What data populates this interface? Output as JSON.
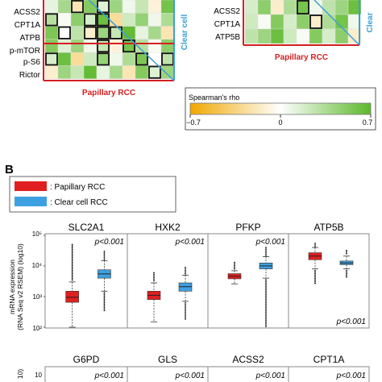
{
  "heatmap_left": {
    "row_labels": [
      "ACSS2",
      "CPT1A",
      "ATPB",
      "p-mTOR",
      "p-S6",
      "Rictor"
    ],
    "x_label": "Papillary RCC",
    "side_label": "Clear cell"
  },
  "heatmap_right": {
    "row_labels": [
      "ACSS2",
      "CPT1A",
      "ATP5B"
    ],
    "x_label": "Papillary RCC",
    "side_label": "Clear"
  },
  "colorbar": {
    "title": "Spearman's rho",
    "ticks": [
      "−0.7",
      "0",
      "0.7"
    ],
    "colors": {
      "low": "#f0a800",
      "mid": "#ffffff",
      "high": "#5cb82a"
    }
  },
  "panel_b": {
    "label": "B",
    "legend": [
      {
        "label": ": Papillary RCC",
        "color": "#e02020"
      },
      {
        "label": ": Clear cell RCC",
        "color": "#3ea0e0"
      }
    ],
    "y_axis_label_line1": "mRNA expression",
    "y_axis_label_line2": "(RNA Seq v2 RSEM) (log10)",
    "y_ticks": [
      "10²",
      "10³",
      "10⁴",
      "10⁵"
    ],
    "bottom_row_y_tick": "10",
    "bottom_row_y_axis_label": "10)"
  },
  "chart_data": {
    "type": "box",
    "ylabel": "mRNA expression (RNA Seq v2 RSEM) (log10)",
    "y_scale": "log",
    "ylim": [
      100,
      100000
    ],
    "series": [
      {
        "name": "Papillary RCC",
        "color": "#e02020"
      },
      {
        "name": "Clear cell RCC",
        "color": "#3ea0e0"
      }
    ],
    "panels": [
      {
        "gene": "SLC2A1",
        "p_value": "p<0.001",
        "boxes": [
          {
            "series": "Papillary RCC",
            "q1": 650,
            "median": 950,
            "q3": 1500,
            "whisker_low": 100,
            "whisker_high": 3000,
            "outlier_high": 50000
          },
          {
            "series": "Clear cell RCC",
            "q1": 4000,
            "median": 5500,
            "q3": 7500,
            "whisker_low": 1500,
            "whisker_high": 15000,
            "outlier_low": 350,
            "outlier_high": 30000
          }
        ]
      },
      {
        "gene": "HXK2",
        "p_value": "p<0.001",
        "boxes": [
          {
            "series": "Papillary RCC",
            "q1": 800,
            "median": 1100,
            "q3": 1500,
            "whisker_low": 150,
            "whisker_high": 2800,
            "outlier_high": 6000
          },
          {
            "series": "Clear cell RCC",
            "q1": 1500,
            "median": 2100,
            "q3": 2800,
            "whisker_low": 700,
            "whisker_high": 5000,
            "outlier_low": 180,
            "outlier_high": 9000
          }
        ]
      },
      {
        "gene": "PFKP",
        "p_value": "p<0.001",
        "boxes": [
          {
            "series": "Papillary RCC",
            "q1": 3800,
            "median": 4600,
            "q3": 5600,
            "whisker_low": 2600,
            "whisker_high": 7000,
            "outlier_high": 13000
          },
          {
            "series": "Clear cell RCC",
            "q1": 8000,
            "median": 10000,
            "q3": 12500,
            "whisker_low": 4000,
            "whisker_high": 20000,
            "outlier_low": 100,
            "outlier_high": 40000
          }
        ]
      },
      {
        "gene": "ATP5B",
        "p_value": "p<0.001",
        "boxes": [
          {
            "series": "Papillary RCC",
            "q1": 16000,
            "median": 21000,
            "q3": 27000,
            "whisker_low": 8000,
            "whisker_high": 40000,
            "outlier_low": 2500,
            "outlier_high": 55000
          },
          {
            "series": "Clear cell RCC",
            "q1": 11000,
            "median": 12500,
            "q3": 14500,
            "whisker_low": 8000,
            "whisker_high": 21000,
            "outlier_low": 4000,
            "outlier_high": 32000
          }
        ]
      }
    ],
    "panels_row2": [
      {
        "gene": "G6PD",
        "p_value": "p<0.001"
      },
      {
        "gene": "GLS",
        "p_value": "p<0.001"
      },
      {
        "gene": "ACSS2",
        "p_value": "p<0.001"
      },
      {
        "gene": "CPT1A",
        "p_value": "p<0.001"
      }
    ]
  }
}
